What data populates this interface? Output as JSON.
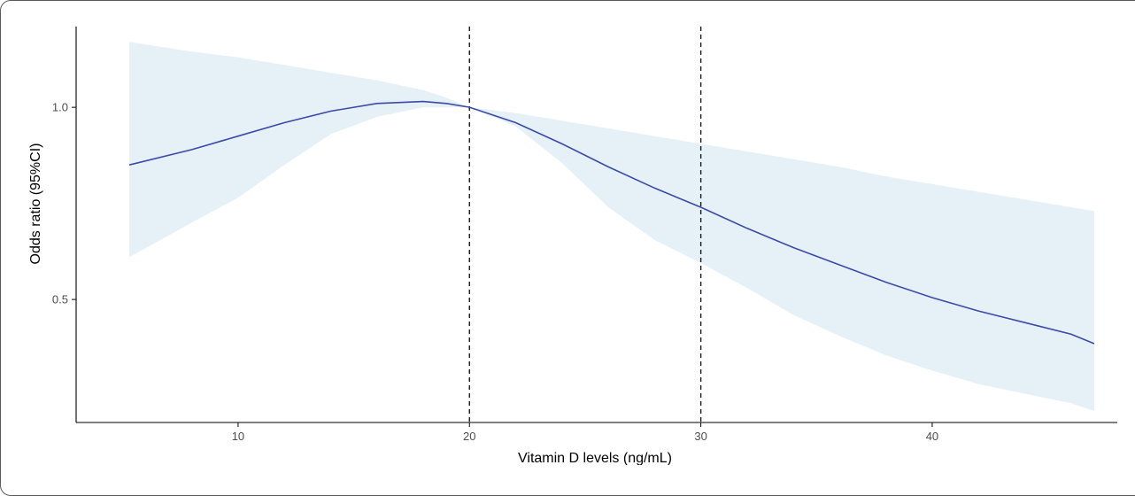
{
  "chart_data": {
    "type": "line",
    "title": "",
    "xlabel": "Vitamin D levels (ng/mL)",
    "ylabel": "Odds ratio (95%CI)",
    "xlim": [
      3.0,
      48.0
    ],
    "ylim": [
      0.18,
      1.21
    ],
    "x_ticks": [
      10,
      20,
      30,
      40
    ],
    "y_ticks": [
      0.5,
      1.0
    ],
    "x_tick_labels": [
      "10",
      "20",
      "30",
      "40"
    ],
    "y_tick_labels": [
      "0.5",
      "1.0"
    ],
    "reference_lines_x": [
      20,
      30
    ],
    "grid": false,
    "legend": "none",
    "colors": {
      "line": "#3b4aa6",
      "band": "#e5f1f7",
      "refline": "#1a1a1a",
      "axis": "#000000"
    },
    "series": [
      {
        "x": [
          5.3,
          8,
          10,
          12,
          14,
          16,
          18,
          19,
          20,
          22,
          24,
          26,
          28,
          30,
          32,
          34,
          36,
          38,
          40,
          42,
          44,
          46,
          47
        ],
        "y": [
          0.85,
          0.89,
          0.925,
          0.96,
          0.99,
          1.01,
          1.015,
          1.01,
          1.0,
          0.96,
          0.905,
          0.845,
          0.79,
          0.74,
          0.685,
          0.635,
          0.59,
          0.545,
          0.505,
          0.47,
          0.44,
          0.41,
          0.385
        ],
        "lower": [
          0.61,
          0.7,
          0.765,
          0.85,
          0.93,
          0.975,
          1.0,
          1.0,
          1.0,
          0.95,
          0.855,
          0.74,
          0.655,
          0.595,
          0.53,
          0.46,
          0.405,
          0.355,
          0.315,
          0.28,
          0.255,
          0.23,
          0.21
        ],
        "upper": [
          1.17,
          1.145,
          1.13,
          1.11,
          1.09,
          1.07,
          1.045,
          1.025,
          1.0,
          0.985,
          0.965,
          0.945,
          0.925,
          0.905,
          0.885,
          0.865,
          0.845,
          0.82,
          0.8,
          0.78,
          0.76,
          0.74,
          0.73
        ]
      }
    ]
  }
}
